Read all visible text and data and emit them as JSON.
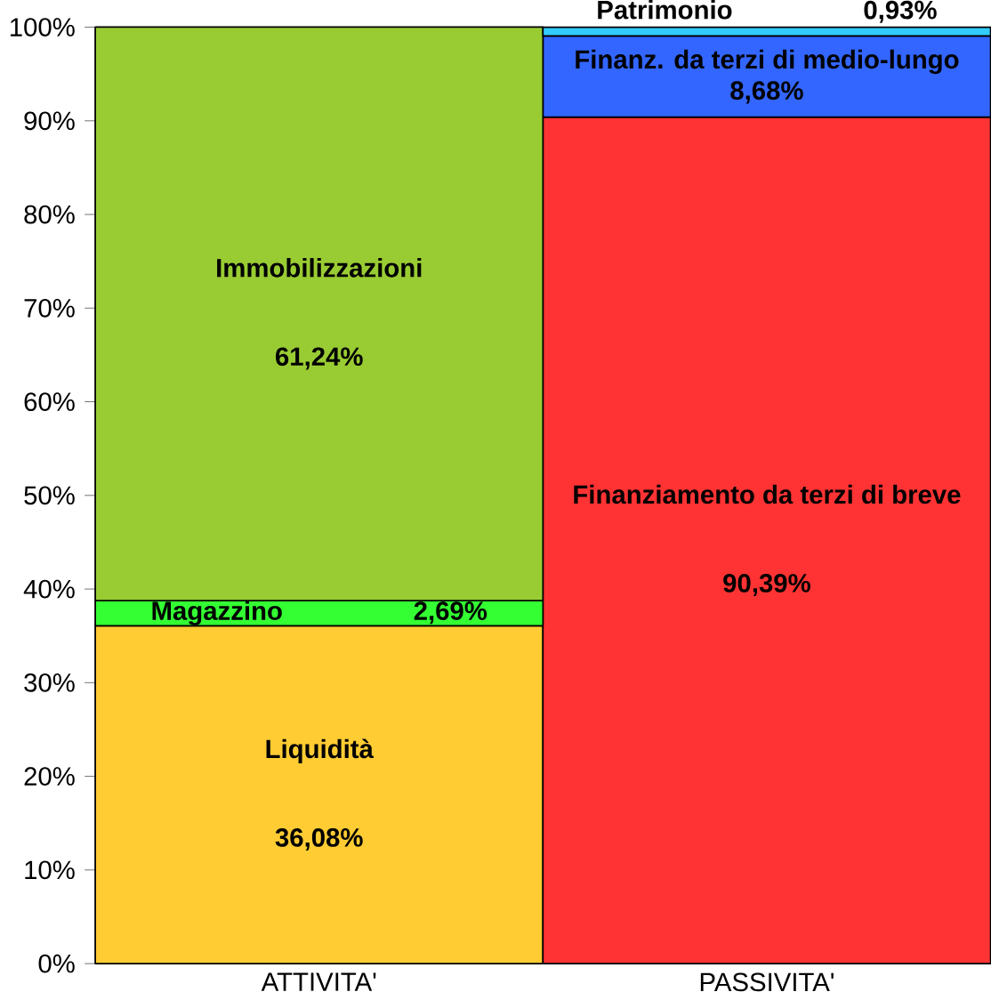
{
  "chart_data": {
    "type": "bar",
    "stacked": true,
    "categories": [
      "ATTIVITA'",
      "PASSIVITA'"
    ],
    "series": [
      {
        "name": "Liquidità",
        "color": "#ffcc33",
        "values": [
          36.08,
          null
        ],
        "value_labels": [
          "36,08%",
          null
        ]
      },
      {
        "name": "Finanziamento da terzi di breve",
        "color": "#ff3333",
        "values": [
          null,
          90.39
        ],
        "value_labels": [
          null,
          "90,39%"
        ]
      },
      {
        "name": "Magazzino",
        "color": "#33ff33",
        "values": [
          2.69,
          null
        ],
        "value_labels": [
          "2,69%",
          null
        ]
      },
      {
        "name": "Finanz. da terzi di medio-lungo",
        "color": "#3366ff",
        "values": [
          null,
          8.68
        ],
        "value_labels": [
          null,
          "8,68%"
        ]
      },
      {
        "name": "Immobilizzazioni",
        "color": "#99cc33",
        "values": [
          61.24,
          null
        ],
        "value_labels": [
          "61,24%",
          null
        ]
      },
      {
        "name": "Patrimonio",
        "color": "#33ccff",
        "values": [
          null,
          0.93
        ],
        "value_labels": [
          null,
          "0,93%"
        ]
      }
    ],
    "ylim": [
      0,
      100
    ],
    "yticks": [
      {
        "value": 0,
        "label": "0%"
      },
      {
        "value": 10,
        "label": "10%"
      },
      {
        "value": 20,
        "label": "20%"
      },
      {
        "value": 30,
        "label": "30%"
      },
      {
        "value": 40,
        "label": "40%"
      },
      {
        "value": 50,
        "label": "50%"
      },
      {
        "value": 60,
        "label": "60%"
      },
      {
        "value": 70,
        "label": "70%"
      },
      {
        "value": 80,
        "label": "80%"
      },
      {
        "value": 90,
        "label": "90%"
      },
      {
        "value": 100,
        "label": "100%"
      }
    ],
    "ylabel": null
  }
}
